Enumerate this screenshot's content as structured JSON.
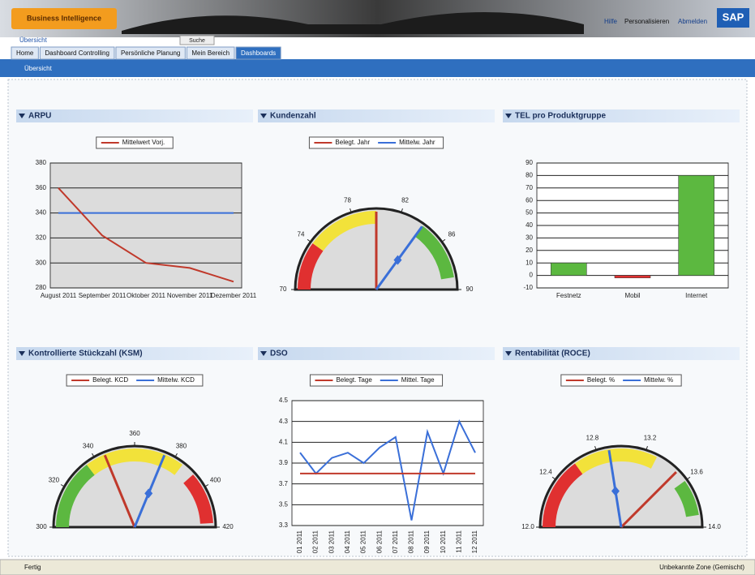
{
  "header": {
    "logo": "Business Intelligence",
    "links": [
      "Hilfe",
      "Personalisieren",
      "Abmelden"
    ],
    "brand": "SAP",
    "breadcrumb": "Übersicht",
    "search_button": "Suche"
  },
  "tabs": [
    "Home",
    "Dashboard Controlling",
    "Persönliche Planung",
    "Mein Bereich",
    "Dashboards"
  ],
  "subnav": "Übersicht",
  "chart_data": [
    {
      "type": "line",
      "title": "ARPU",
      "categories": [
        "August 2011",
        "September 2011",
        "Oktober 2011",
        "November 2011",
        "Dezember 2011"
      ],
      "series": [
        {
          "name": "Mittelwert Vorj.",
          "color": "#c0392b",
          "values": [
            360,
            322,
            300,
            296,
            285
          ]
        },
        {
          "color": "#3a6fd8",
          "values": [
            340,
            340,
            340,
            340,
            340
          ]
        }
      ],
      "ylim": [
        280,
        380
      ],
      "yticks": [
        280,
        300,
        320,
        340,
        360,
        380
      ],
      "grid": true
    },
    {
      "type": "gauge",
      "title": "Kundenzahl",
      "ylim": [
        70,
        90
      ],
      "yticks": [
        70,
        74,
        78,
        82,
        86,
        90
      ],
      "bands": [
        {
          "from": 70,
          "to": 74,
          "color": "#e03030"
        },
        {
          "from": 74,
          "to": 80,
          "color": "#f2e23a"
        },
        {
          "from": 84,
          "to": 89,
          "color": "#5cb840"
        }
      ],
      "series": [
        {
          "name": "Belegt. Jahr",
          "color": "#c0392b",
          "values": [
            80
          ]
        },
        {
          "name": "Mittelw. Jahr",
          "color": "#3a6fd8",
          "values": [
            84
          ]
        }
      ]
    },
    {
      "type": "bar",
      "title": "TEL pro Produktgruppe",
      "categories": [
        "Festnetz",
        "Mobil",
        "Internet"
      ],
      "values": [
        10,
        -2,
        80
      ],
      "colors": [
        "#5cb840",
        "#e03030",
        "#5cb840"
      ],
      "ylim": [
        -10,
        90
      ],
      "yticks": [
        -10,
        0,
        10,
        20,
        30,
        40,
        50,
        60,
        70,
        80,
        90
      ],
      "grid": true
    },
    {
      "type": "gauge",
      "title": "Kontrollierte Stückzahl (KSM)",
      "ylim": [
        300,
        420
      ],
      "yticks": [
        300,
        320,
        340,
        360,
        380,
        400,
        420
      ],
      "bands": [
        {
          "from": 300,
          "to": 335,
          "color": "#5cb840"
        },
        {
          "from": 335,
          "to": 385,
          "color": "#f2e23a"
        },
        {
          "from": 392,
          "to": 418,
          "color": "#e03030"
        }
      ],
      "series": [
        {
          "name": "Belegt. KCD",
          "color": "#c0392b",
          "values": [
            345
          ]
        },
        {
          "name": "Mittelw. KCD",
          "color": "#3a6fd8",
          "values": [
            375
          ]
        }
      ]
    },
    {
      "type": "line",
      "title": "DSO",
      "categories": [
        "01 2011",
        "02 2011",
        "03 2011",
        "04 2011",
        "05 2011",
        "06 2011",
        "07 2011",
        "08 2011",
        "09 2011",
        "10 2011",
        "11 2011",
        "12 2011"
      ],
      "series": [
        {
          "name": "Belegt. Tage",
          "color": "#c0392b",
          "values": [
            3.8,
            3.8,
            3.8,
            3.8,
            3.8,
            3.8,
            3.8,
            3.8,
            3.8,
            3.8,
            3.8,
            3.8
          ]
        },
        {
          "name": "Mittel. Tage",
          "color": "#3a6fd8",
          "values": [
            4.0,
            3.8,
            3.95,
            4.0,
            3.9,
            4.05,
            4.15,
            3.35,
            4.2,
            3.8,
            4.3,
            4.0
          ]
        }
      ],
      "ylim": [
        3.3,
        4.5
      ],
      "yticks": [
        3.3,
        3.5,
        3.7,
        3.9,
        4.1,
        4.3,
        4.5
      ],
      "grid": true,
      "rotate_labels": true
    },
    {
      "type": "gauge",
      "title": "Rentabilität (ROCE)",
      "ylim": [
        12,
        14
      ],
      "yticks": [
        {
          "value": 12,
          "label": "12.0"
        },
        12.4,
        12.8,
        13.2,
        13.6,
        {
          "value": 14,
          "label": "14.0"
        }
      ],
      "bands": [
        {
          "from": 12,
          "to": 12.6,
          "color": "#e03030"
        },
        {
          "from": 12.6,
          "to": 13.3,
          "color": "#f2e23a"
        },
        {
          "from": 13.6,
          "to": 13.9,
          "color": "#5cb840"
        }
      ],
      "series": [
        {
          "name": "Belegt. %",
          "color": "#c0392b",
          "values": [
            13.5
          ]
        },
        {
          "name": "Mittelw. %",
          "color": "#3a6fd8",
          "values": [
            12.9
          ]
        }
      ]
    }
  ],
  "status_bar": {
    "left": "Fertig",
    "right": "Unbekannte Zone (Gemischt)"
  }
}
